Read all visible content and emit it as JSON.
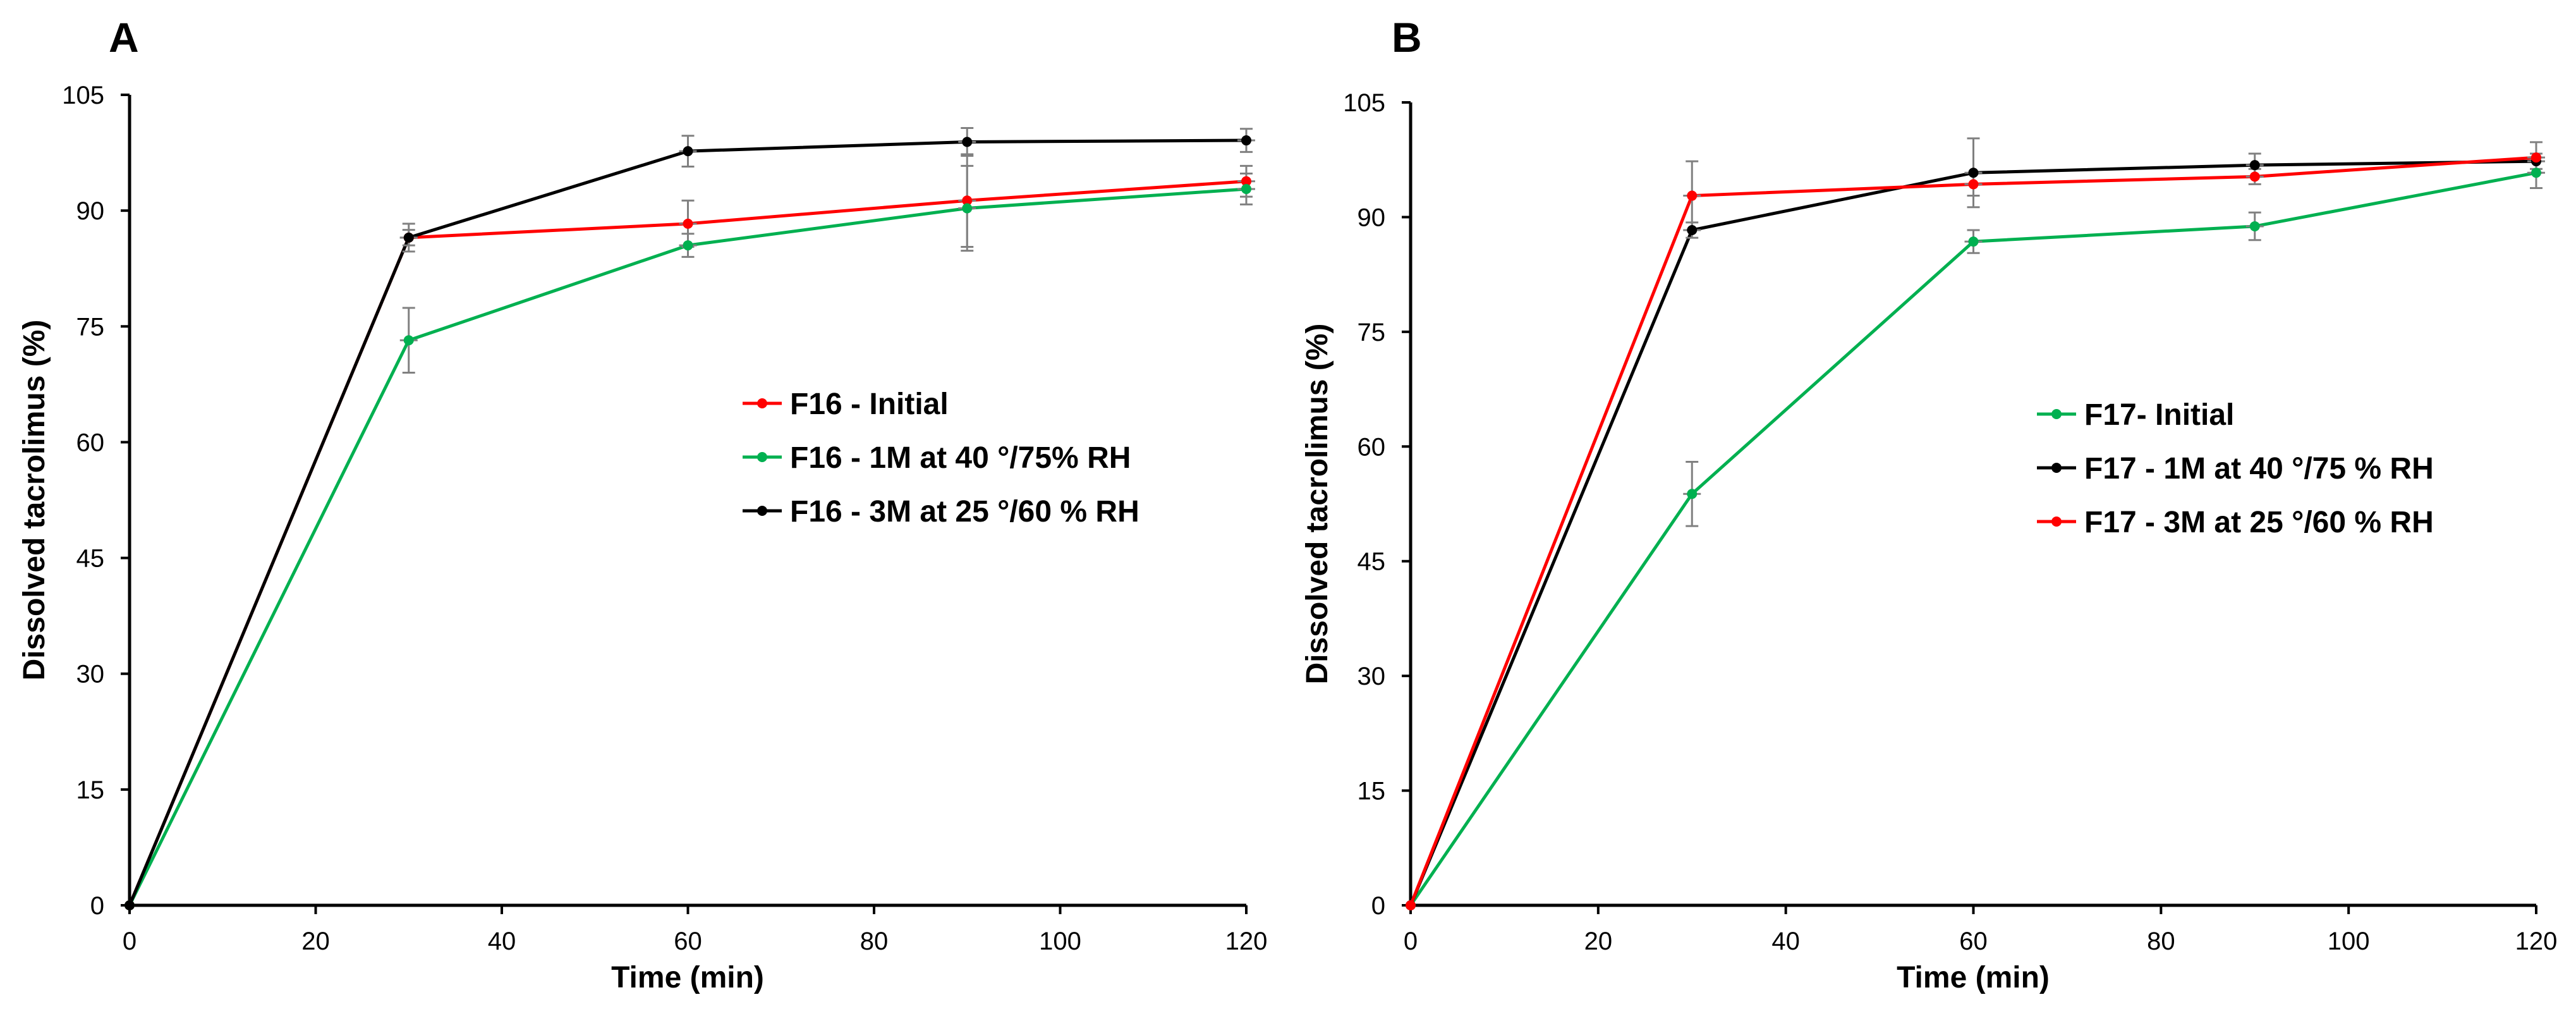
{
  "chart_data": [
    {
      "type": "line",
      "panel": "A",
      "xlabel": "Time (min)",
      "ylabel": "Dissolved tacrolimus (%)",
      "xlim": [
        0,
        120
      ],
      "ylim": [
        0,
        105
      ],
      "xticks": [
        0,
        20,
        40,
        60,
        80,
        100,
        120
      ],
      "yticks": [
        0,
        15,
        30,
        45,
        60,
        75,
        90,
        105
      ],
      "x": [
        0,
        30,
        60,
        90,
        120
      ],
      "legend": "center-right",
      "series": [
        {
          "name": "F16 - Initial",
          "color": "#ff0000",
          "values": [
            0,
            86.5,
            88.3,
            91.3,
            93.8
          ],
          "errors": [
            0,
            1.0,
            3.0,
            6.0,
            2.0
          ]
        },
        {
          "name": "F16 - 1M at 40 °/75% RH",
          "color": "#00b050",
          "values": [
            0,
            73.2,
            85.5,
            90.3,
            92.8
          ],
          "errors": [
            0,
            4.2,
            1.5,
            5.5,
            2.0
          ]
        },
        {
          "name": "F16 - 3M at 25 °/60 % RH",
          "color": "#000000",
          "values": [
            0,
            86.5,
            97.7,
            98.9,
            99.1
          ],
          "errors": [
            0,
            1.8,
            2.0,
            1.8,
            1.5
          ]
        }
      ]
    },
    {
      "type": "line",
      "panel": "B",
      "xlabel": "Time (min)",
      "ylabel": "Dissolved tacrolimus (%)",
      "xlim": [
        0,
        120
      ],
      "ylim": [
        0,
        105
      ],
      "xticks": [
        0,
        20,
        40,
        60,
        80,
        100,
        120
      ],
      "yticks": [
        0,
        15,
        30,
        45,
        60,
        75,
        90,
        105
      ],
      "x": [
        0,
        30,
        60,
        90,
        120
      ],
      "legend": "center-right",
      "series": [
        {
          "name": "F17- Initial",
          "color": "#00b050",
          "values": [
            0,
            53.8,
            86.8,
            88.8,
            95.8
          ],
          "errors": [
            0,
            4.2,
            1.5,
            1.8,
            2.0
          ]
        },
        {
          "name": "F17 - 1M at 40 °/75 % RH",
          "color": "#000000",
          "values": [
            0,
            88.3,
            95.8,
            96.8,
            97.3
          ],
          "errors": [
            0,
            1.0,
            4.5,
            1.5,
            1.0
          ]
        },
        {
          "name": "F17 - 3M at 25 °/60 % RH",
          "color": "#ff0000",
          "values": [
            0,
            92.8,
            94.3,
            95.3,
            97.8
          ],
          "errors": [
            0,
            4.5,
            1.5,
            1.0,
            2.0
          ]
        }
      ]
    }
  ]
}
